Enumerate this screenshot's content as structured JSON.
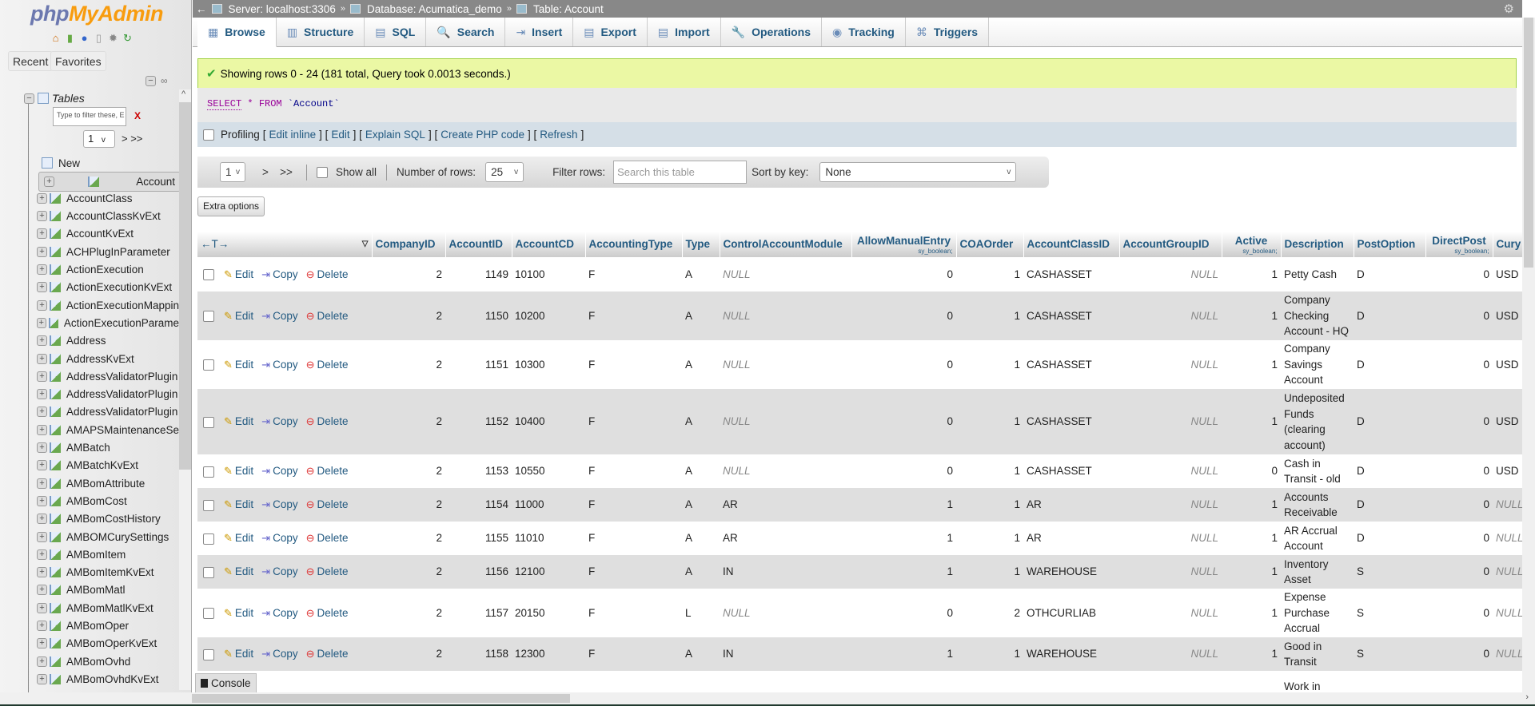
{
  "sidebar": {
    "logo": {
      "php": "php",
      "my": "MyAdmin"
    },
    "nav_icons": [
      "home-icon",
      "exit-icon",
      "help-icon",
      "docs-icon",
      "settings-icon",
      "reload-icon"
    ],
    "recent": "Recent",
    "favorites": "Favorites",
    "tables_label": "Tables",
    "filter_placeholder": "Type to filter these, E",
    "filter_clear": "X",
    "page": "1",
    "page_next": "> >>",
    "new_label": "New",
    "items": [
      "Account",
      "AccountClass",
      "AccountClassKvExt",
      "AccountKvExt",
      "ACHPlugInParameter",
      "ActionExecution",
      "ActionExecutionKvExt",
      "ActionExecutionMappin",
      "ActionExecutionParame",
      "Address",
      "AddressKvExt",
      "AddressValidatorPlugin",
      "AddressValidatorPlugin",
      "AddressValidatorPlugin",
      "AMAPSMaintenanceSe",
      "AMBatch",
      "AMBatchKvExt",
      "AMBomAttribute",
      "AMBomCost",
      "AMBomCostHistory",
      "AMBOMCurySettings",
      "AMBomItem",
      "AMBomItemKvExt",
      "AMBomMatl",
      "AMBomMatlKvExt",
      "AMBomOper",
      "AMBomOperKvExt",
      "AMBomOvhd",
      "AMBomOvhdKvExt"
    ],
    "selected": "Account"
  },
  "breadcrumb": {
    "back": "←",
    "server": "Server: localhost:3306",
    "database": "Database: Acumatica_demo",
    "table": "Table: Account",
    "sep": "»"
  },
  "tabs": [
    {
      "label": "Browse",
      "icon": "▦"
    },
    {
      "label": "Structure",
      "icon": "▥"
    },
    {
      "label": "SQL",
      "icon": "▤"
    },
    {
      "label": "Search",
      "icon": "🔍"
    },
    {
      "label": "Insert",
      "icon": "⇥"
    },
    {
      "label": "Export",
      "icon": "▤"
    },
    {
      "label": "Import",
      "icon": "▤"
    },
    {
      "label": "Operations",
      "icon": "🔧"
    },
    {
      "label": "Tracking",
      "icon": "◉"
    },
    {
      "label": "Triggers",
      "icon": "⌘"
    }
  ],
  "active_tab": "Browse",
  "message": "Showing rows 0 - 24 (181 total, Query took 0.0013 seconds.)",
  "sql": {
    "select": "SELECT",
    "star": "*",
    "from": "FROM",
    "table": "`Account`"
  },
  "profiling": {
    "label": "Profiling",
    "links": [
      "Edit inline",
      "Edit",
      "Explain SQL",
      "Create PHP code",
      "Refresh"
    ]
  },
  "navigation": {
    "page": "1",
    "next": ">",
    "last": ">>",
    "show_all": "Show all",
    "rows_label": "Number of rows:",
    "rows_value": "25",
    "filter_label": "Filter rows:",
    "filter_placeholder": "Search this table",
    "sort_label": "Sort by key:",
    "sort_value": "None"
  },
  "extra_options": "Extra options",
  "table": {
    "columns": [
      {
        "name": "CompanyID"
      },
      {
        "name": "AccountID"
      },
      {
        "name": "AccountCD"
      },
      {
        "name": "AccountingType"
      },
      {
        "name": "Type"
      },
      {
        "name": "ControlAccountModule"
      },
      {
        "name": "AllowManualEntry",
        "sub": "sy_boolean;"
      },
      {
        "name": "COAOrder"
      },
      {
        "name": "AccountClassID"
      },
      {
        "name": "AccountGroupID"
      },
      {
        "name": "Active",
        "sub": "sy_boolean;"
      },
      {
        "name": "Description"
      },
      {
        "name": "PostOption"
      },
      {
        "name": "DirectPost",
        "sub": "sy_boolean;"
      },
      {
        "name": "Cury"
      }
    ],
    "actions": {
      "edit": "Edit",
      "copy": "Copy",
      "delete": "Delete"
    },
    "rows": [
      [
        "2",
        "1149",
        "10100",
        "F",
        "A",
        "NULL",
        "0",
        "1",
        "CASHASSET",
        "NULL",
        "1",
        "Petty Cash",
        "D",
        "0",
        "USD"
      ],
      [
        "2",
        "1150",
        "10200",
        "F",
        "A",
        "NULL",
        "0",
        "1",
        "CASHASSET",
        "NULL",
        "1",
        "Company Checking Account - HQ",
        "D",
        "0",
        "USD"
      ],
      [
        "2",
        "1151",
        "10300",
        "F",
        "A",
        "NULL",
        "0",
        "1",
        "CASHASSET",
        "NULL",
        "1",
        "Company Savings Account",
        "D",
        "0",
        "USD"
      ],
      [
        "2",
        "1152",
        "10400",
        "F",
        "A",
        "NULL",
        "0",
        "1",
        "CASHASSET",
        "NULL",
        "1",
        "Undeposited Funds (clearing account)",
        "D",
        "0",
        "USD"
      ],
      [
        "2",
        "1153",
        "10550",
        "F",
        "A",
        "NULL",
        "0",
        "1",
        "CASHASSET",
        "NULL",
        "0",
        "Cash in Transit - old",
        "D",
        "0",
        "USD"
      ],
      [
        "2",
        "1154",
        "11000",
        "F",
        "A",
        "AR",
        "1",
        "1",
        "AR",
        "NULL",
        "1",
        "Accounts Receivable",
        "D",
        "0",
        "NULL"
      ],
      [
        "2",
        "1155",
        "11010",
        "F",
        "A",
        "AR",
        "1",
        "1",
        "AR",
        "NULL",
        "1",
        "AR Accrual Account",
        "D",
        "0",
        "NULL"
      ],
      [
        "2",
        "1156",
        "12100",
        "F",
        "A",
        "IN",
        "1",
        "1",
        "WAREHOUSE",
        "NULL",
        "1",
        "Inventory Asset",
        "S",
        "0",
        "NULL"
      ],
      [
        "2",
        "1157",
        "20150",
        "F",
        "L",
        "NULL",
        "0",
        "2",
        "OTHCURLIAB",
        "NULL",
        "1",
        "Expense Purchase Accrual",
        "S",
        "0",
        "NULL"
      ],
      [
        "2",
        "1158",
        "12300",
        "F",
        "A",
        "IN",
        "1",
        "1",
        "WAREHOUSE",
        "NULL",
        "1",
        "Good in Transit",
        "S",
        "0",
        "NULL"
      ],
      [
        "",
        "",
        "",
        "",
        "",
        "",
        "",
        "",
        "",
        "",
        "",
        "Work in",
        "",
        "",
        ""
      ]
    ]
  },
  "console": "Console",
  "colors": {
    "accent": "#235a81",
    "success_bg": "#ebf8a4",
    "row_alt": "#dfdfdf",
    "breadcrumb_bg": "#888888"
  }
}
